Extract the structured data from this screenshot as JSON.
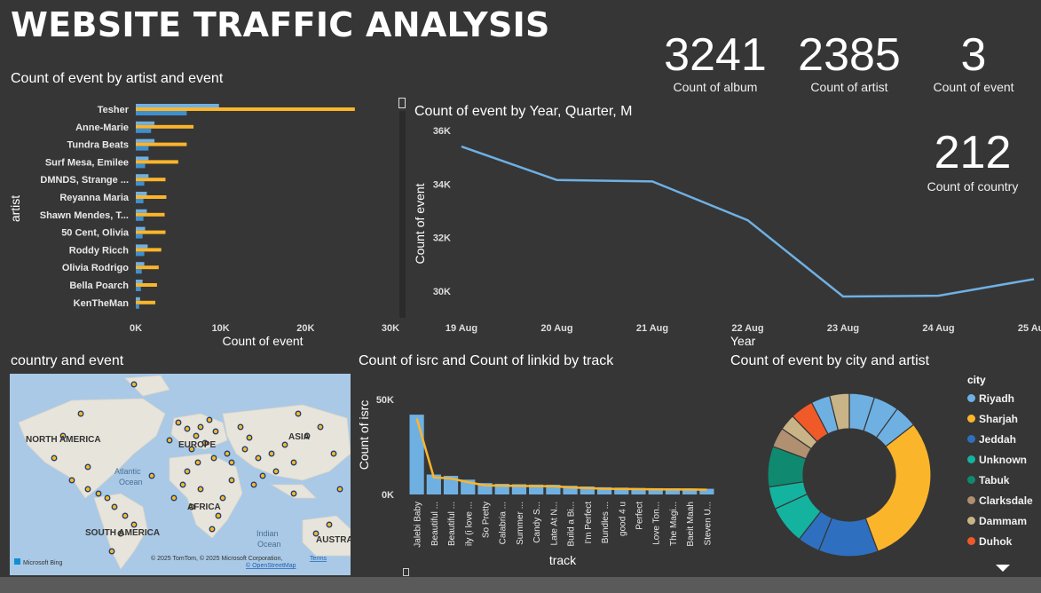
{
  "page": {
    "title": "WEBSITE TRAFFIC ANALYSIS"
  },
  "colors": {
    "blue": "#6fb0e3",
    "gold": "#fbb52b",
    "line": "#6fb0e3",
    "background": "#363636"
  },
  "kpis": [
    {
      "value": "3241",
      "label": "Count of album"
    },
    {
      "value": "2385",
      "label": "Count of artist"
    },
    {
      "value": "3",
      "label": "Count of event"
    },
    {
      "value": "212",
      "label": "Count of country"
    }
  ],
  "map": {
    "title": "country and event",
    "attribution": "© 2025 TomTom, © 2025 Microsoft Corporation,",
    "terms": "Terms",
    "osm": "© OpenStreetMap",
    "bing": "Microsoft Bing",
    "labels": [
      "NORTH AMERICA",
      "EUROPE",
      "ASIA",
      "Atlantic",
      "Ocean",
      "AFRICA",
      "SOUTH AMERICA",
      "Indian",
      "Ocean",
      "AUSTRA"
    ]
  },
  "donut_legend": {
    "title": "city",
    "items": [
      {
        "name": "Riyadh",
        "color": "#6fb0e3"
      },
      {
        "name": "Sharjah",
        "color": "#fbb52b"
      },
      {
        "name": "Jeddah",
        "color": "#2f6fbf"
      },
      {
        "name": "Unknown",
        "color": "#13b3a0"
      },
      {
        "name": "Tabuk",
        "color": "#0f8a70"
      },
      {
        "name": "Clarksdale",
        "color": "#b09070"
      },
      {
        "name": "Dammam",
        "color": "#c9b487"
      },
      {
        "name": "Duhok",
        "color": "#f05a28"
      }
    ]
  },
  "chart_data": [
    {
      "id": "artist_bar",
      "type": "bar",
      "orientation": "horizontal",
      "title": "Count of event by artist and event",
      "xlabel": "Count of event",
      "ylabel": "artist",
      "xlim": [
        0,
        30000
      ],
      "xticks": [
        "0K",
        "10K",
        "20K",
        "30K"
      ],
      "categories": [
        "Tesher",
        "Anne-Marie",
        "Tundra Beats",
        "Surf Mesa, Emilee",
        "DMNDS, Strange ...",
        "Reyanna Maria",
        "Shawn Mendes, T...",
        "50 Cent, Olivia",
        "Roddy Ricch",
        "Olivia Rodrigo",
        "Bella Poarch",
        "KenTheMan"
      ],
      "series": [
        {
          "values": [
            9800,
            2200,
            2200,
            1500,
            1500,
            1300,
            1300,
            1100,
            1400,
            1000,
            800,
            500
          ]
        },
        {
          "values": [
            25800,
            6800,
            6000,
            5000,
            3500,
            3600,
            3400,
            3500,
            3000,
            2700,
            2500,
            2300
          ]
        },
        {
          "values": [
            6000,
            1800,
            1500,
            1100,
            1000,
            900,
            900,
            800,
            1000,
            700,
            600,
            400
          ]
        }
      ]
    },
    {
      "id": "year_line",
      "type": "line",
      "title": "Count of event by Year, Quarter, M",
      "xlabel": "Year",
      "ylabel": "Count of event",
      "ylim": [
        29500,
        36500
      ],
      "yticks": [
        "30K",
        "32K",
        "34K",
        "36K"
      ],
      "x": [
        "19 Aug",
        "20 Aug",
        "21 Aug",
        "22 Aug",
        "23 Aug",
        "24 Aug",
        "25 Aug"
      ],
      "values": [
        35400,
        34150,
        34100,
        32650,
        29800,
        29830,
        30450
      ]
    },
    {
      "id": "track_combo",
      "type": "bar",
      "title": "Count of isrc and Count of linkid by track",
      "xlabel": "track",
      "ylabel": "Count of isrc",
      "yticks": [
        "0K",
        "50K"
      ],
      "ylim": [
        0,
        58000
      ],
      "categories": [
        "Jalebi Baby",
        "Beautiful ...",
        "Beautiful ...",
        "ily (i love ...",
        "So Pretty",
        "Calabria ...",
        "Summer ...",
        "Candy S...",
        "Late At N...",
        "Build a Bi...",
        "I'm Perfect",
        "Bundles ...",
        "good 4 u",
        "Perfect",
        "Love Ton...",
        "The Magi...",
        "Baeit Maah",
        "Steven U..."
      ],
      "series": [
        {
          "kind": "bar",
          "values": [
            42000,
            10500,
            9800,
            7800,
            6000,
            5600,
            5400,
            5200,
            5100,
            4600,
            4200,
            3800,
            3600,
            3400,
            3300,
            3200,
            3100,
            3000
          ]
        },
        {
          "kind": "line",
          "values": [
            40000,
            9000,
            8400,
            6500,
            4800,
            4600,
            4500,
            4400,
            4300,
            3700,
            3400,
            3000,
            2900,
            2800,
            2700,
            2600,
            2600,
            2500
          ]
        }
      ]
    },
    {
      "id": "city_donut",
      "type": "pie",
      "title": "Count of event by city and artist",
      "slices": [
        {
          "city": "Riyadh",
          "value": 3.6
        },
        {
          "city": "Riyadh",
          "value": 3.6
        },
        {
          "city": "Riyadh",
          "value": 3.2
        },
        {
          "city": "Sharjah",
          "value": 21.5
        },
        {
          "city": "Jeddah",
          "value": 8.5
        },
        {
          "city": "Jeddah",
          "value": 3.2
        },
        {
          "city": "Unknown",
          "value": 5.5
        },
        {
          "city": "Unknown",
          "value": 3.2
        },
        {
          "city": "Tabuk",
          "value": 5.8
        },
        {
          "city": "Clarksdale",
          "value": 2.8
        },
        {
          "city": "Dammam",
          "value": 2.3
        },
        {
          "city": "Duhok",
          "value": 3.3
        },
        {
          "city": "Riyadh",
          "value": 2.7
        },
        {
          "city": "Dammam",
          "value": 2.8
        }
      ]
    }
  ]
}
